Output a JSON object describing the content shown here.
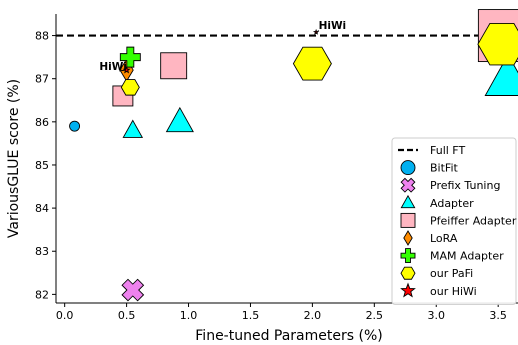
{
  "chart_data": {
    "type": "scatter",
    "xlabel": "Fine-tuned Parameters (%)",
    "ylabel": "VariousGLUE score (%)",
    "xlim": [
      -0.07,
      3.66
    ],
    "ylim": [
      81.8,
      88.5
    ],
    "x_ticks": [
      0.0,
      0.5,
      1.0,
      1.5,
      2.0,
      2.5,
      3.0,
      3.5
    ],
    "x_tick_labels": [
      "0.0",
      "0.5",
      "1.0",
      "1.5",
      "2.0",
      "2.5",
      "3.0",
      "3.5"
    ],
    "y_ticks": [
      82,
      83,
      84,
      85,
      86,
      87,
      88
    ],
    "y_tick_labels": [
      "82",
      "83",
      "84",
      "85",
      "86",
      "87",
      "88"
    ],
    "grid": false,
    "legend_position": "bottom-right",
    "reference_line": {
      "name": "Full FT",
      "y": 88.0,
      "style": "dashed",
      "color": "#000000"
    },
    "series": [
      {
        "name": "BitFit",
        "marker": "circle",
        "color": "#00b0f0",
        "points": [
          {
            "x": 0.08,
            "y": 85.9,
            "size": 5
          }
        ]
      },
      {
        "name": "Prefix Tuning",
        "marker": "x",
        "color": "#ee82ee",
        "points": [
          {
            "x": 0.55,
            "y": 82.1,
            "size": 11
          }
        ]
      },
      {
        "name": "Adapter",
        "marker": "triangle",
        "color": "#00ffff",
        "points": [
          {
            "x": 0.55,
            "y": 85.8,
            "size": 10
          },
          {
            "x": 0.93,
            "y": 86.0,
            "size": 14
          },
          {
            "x": 3.58,
            "y": 87.0,
            "size": 24
          }
        ]
      },
      {
        "name": "Pfeiffer Adapter",
        "marker": "square",
        "color": "#ffb6c1",
        "points": [
          {
            "x": 0.47,
            "y": 86.6,
            "size": 10
          },
          {
            "x": 0.88,
            "y": 87.3,
            "size": 13
          },
          {
            "x": 3.55,
            "y": 88.0,
            "size": 26
          }
        ]
      },
      {
        "name": "LoRA",
        "marker": "diamond",
        "color": "#ff8c00",
        "points": [
          {
            "x": 0.5,
            "y": 87.2,
            "size": 11
          }
        ]
      },
      {
        "name": "MAM Adapter",
        "marker": "plus",
        "color": "#33ff00",
        "points": [
          {
            "x": 0.53,
            "y": 87.5,
            "size": 10
          }
        ]
      },
      {
        "name": "our PaFi",
        "marker": "hexagon",
        "color": "#ffff00",
        "points": [
          {
            "x": 0.53,
            "y": 86.8,
            "size": 9
          },
          {
            "x": 2.0,
            "y": 87.35,
            "size": 19
          },
          {
            "x": 3.53,
            "y": 87.8,
            "size": 24
          }
        ]
      },
      {
        "name": "our HiWi",
        "marker": "star",
        "color": "#ff0000",
        "points": [
          {
            "x": 0.5,
            "y": 87.2,
            "size": 3
          },
          {
            "x": 2.03,
            "y": 88.08,
            "size": 2
          }
        ]
      }
    ],
    "annotations": [
      {
        "text": "HiWi",
        "x": 2.05,
        "y": 88.15
      },
      {
        "text": "HiWi",
        "x": 0.28,
        "y": 87.2
      }
    ]
  }
}
